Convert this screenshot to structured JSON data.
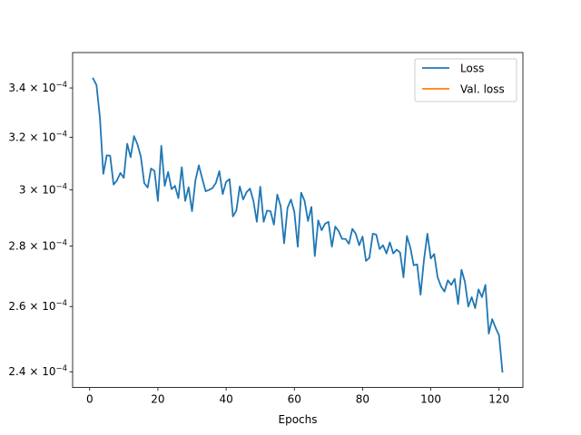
{
  "chart_data": {
    "type": "line",
    "title": "",
    "xlabel": "Epochs",
    "ylabel": "",
    "yscale": "log",
    "xlim": [
      -5,
      127
    ],
    "ylim": [
      0.0002354,
      0.0003551
    ],
    "xticks": [
      0,
      20,
      40,
      60,
      80,
      100,
      120
    ],
    "yticks": [
      {
        "value": 0.00024,
        "mantissa": "2.4",
        "exp": "−4"
      },
      {
        "value": 0.00026,
        "mantissa": "2.6",
        "exp": "−4"
      },
      {
        "value": 0.00028,
        "mantissa": "2.8",
        "exp": "−4"
      },
      {
        "value": 0.0003,
        "mantissa": "3",
        "exp": "−4"
      },
      {
        "value": 0.00032,
        "mantissa": "3.2",
        "exp": "−4"
      },
      {
        "value": 0.00034,
        "mantissa": "3.4",
        "exp": "−4"
      }
    ],
    "grid": false,
    "legend_position": "top-right",
    "series": [
      {
        "name": "Loss",
        "color": "#1f77b4",
        "x": [
          1,
          2,
          3,
          4,
          5,
          6,
          7,
          8,
          9,
          10,
          11,
          12,
          13,
          14,
          15,
          16,
          17,
          18,
          19,
          20,
          21,
          22,
          23,
          24,
          25,
          26,
          27,
          28,
          29,
          30,
          31,
          32,
          33,
          34,
          35,
          36,
          37,
          38,
          39,
          40,
          41,
          42,
          43,
          44,
          45,
          46,
          47,
          48,
          49,
          50,
          51,
          52,
          53,
          54,
          55,
          56,
          57,
          58,
          59,
          60,
          61,
          62,
          63,
          64,
          65,
          66,
          67,
          68,
          69,
          70,
          71,
          72,
          73,
          74,
          75,
          76,
          77,
          78,
          79,
          80,
          81,
          82,
          83,
          84,
          85,
          86,
          87,
          88,
          89,
          90,
          91,
          92,
          93,
          94,
          95,
          96,
          97,
          98,
          99,
          100,
          101,
          102,
          103,
          104,
          105,
          106,
          107,
          108,
          109,
          110,
          111,
          112,
          113,
          114,
          115,
          116,
          117,
          118,
          119,
          120,
          121
        ],
        "y": [
          0.000344,
          0.0003412,
          0.0003278,
          0.000306,
          0.000313,
          0.0003129,
          0.000302,
          0.0003035,
          0.0003063,
          0.0003045,
          0.0003175,
          0.0003123,
          0.0003205,
          0.0003173,
          0.0003125,
          0.0003025,
          0.0003009,
          0.000308,
          0.0003071,
          0.000296,
          0.0003167,
          0.0003015,
          0.0003067,
          0.0003003,
          0.0003015,
          0.000297,
          0.0003085,
          0.000296,
          0.000301,
          0.0002923,
          0.0003035,
          0.0003092,
          0.0003042,
          0.0002995,
          0.0003,
          0.0003007,
          0.0003026,
          0.000307,
          0.0002985,
          0.000303,
          0.000304,
          0.0002904,
          0.0002925,
          0.0003013,
          0.0002965,
          0.0002992,
          0.0003005,
          0.000296,
          0.0002885,
          0.0003012,
          0.0002885,
          0.0002925,
          0.0002923,
          0.0002875,
          0.0002983,
          0.000294,
          0.000281,
          0.0002935,
          0.0002965,
          0.000292,
          0.0002798,
          0.000299,
          0.000296,
          0.0002888,
          0.0002938,
          0.0002766,
          0.000289,
          0.0002855,
          0.0002878,
          0.0002885,
          0.0002798,
          0.0002868,
          0.0002852,
          0.0002825,
          0.0002825,
          0.0002808,
          0.000286,
          0.0002843,
          0.0002803,
          0.0002833,
          0.000275,
          0.000276,
          0.0002843,
          0.000284,
          0.000279,
          0.0002803,
          0.0002775,
          0.0002813,
          0.0002775,
          0.0002788,
          0.0002778,
          0.0002695,
          0.0002835,
          0.0002795,
          0.0002735,
          0.0002738,
          0.0002638,
          0.0002753,
          0.0002843,
          0.0002758,
          0.0002773,
          0.0002695,
          0.0002665,
          0.0002648,
          0.0002685,
          0.000267,
          0.000269,
          0.0002608,
          0.000272,
          0.000268,
          0.00026,
          0.000263,
          0.0002595,
          0.0002655,
          0.000263,
          0.000267,
          0.0002515,
          0.000256,
          0.0002533,
          0.000251,
          0.00024
        ]
      },
      {
        "name": "Val. loss",
        "color": "#ff7f0e",
        "x": [],
        "y": []
      }
    ]
  }
}
